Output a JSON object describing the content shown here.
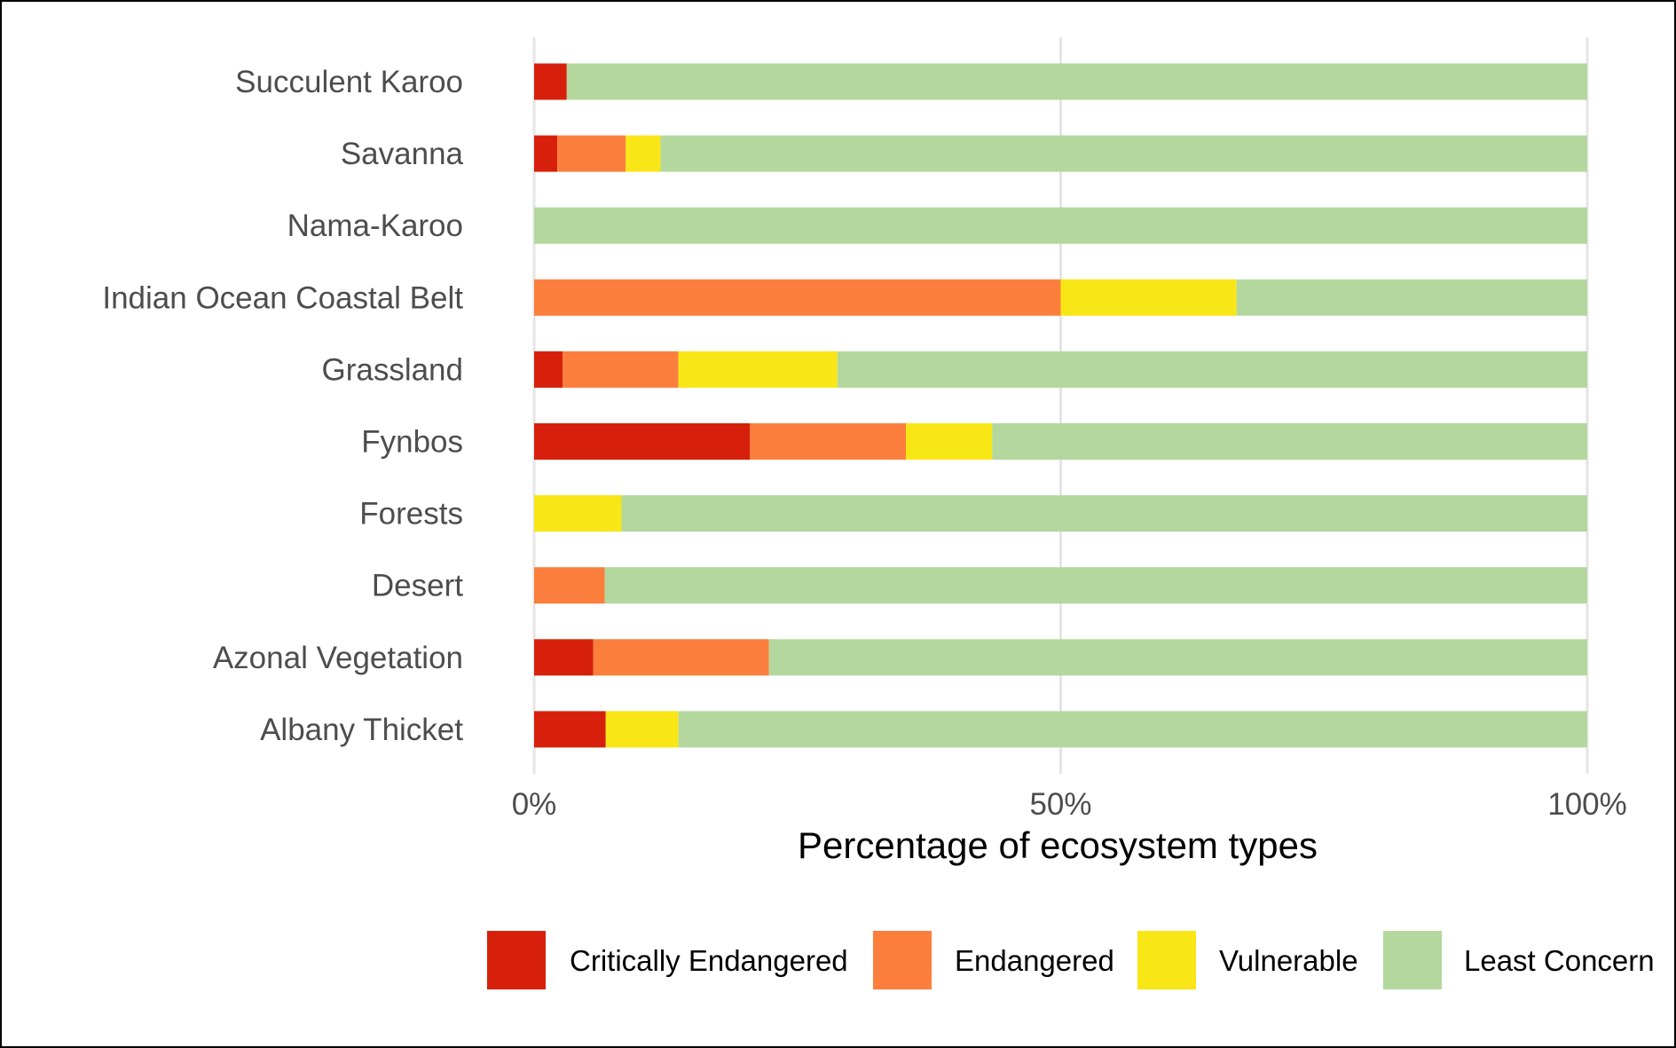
{
  "chart_data": {
    "type": "bar",
    "orientation": "horizontal",
    "stacked": true,
    "title": "",
    "xlabel": "Percentage of ecosystem types",
    "ylabel": "",
    "xlim": [
      0,
      100
    ],
    "x_ticks": [
      {
        "value": 0,
        "label": "0%"
      },
      {
        "value": 50,
        "label": "50%"
      },
      {
        "value": 100,
        "label": "100%"
      }
    ],
    "grid": "vertical major gridlines",
    "legend_position": "bottom",
    "categories": [
      "Succulent Karoo",
      "Savanna",
      "Nama-Karoo",
      "Indian Ocean Coastal Belt",
      "Grassland",
      "Fynbos",
      "Forests",
      "Desert",
      "Azonal Vegetation",
      "Albany Thicket"
    ],
    "series": [
      {
        "name": "Critically Endangered",
        "color": "#d7200b",
        "values": [
          3.1,
          2.2,
          0,
          0,
          2.7,
          20.5,
          0,
          0,
          5.6,
          6.8
        ]
      },
      {
        "name": "Endangered",
        "color": "#fc7e3d",
        "values": [
          0,
          6.5,
          0,
          50,
          11,
          14.8,
          0,
          6.7,
          16.7,
          0
        ]
      },
      {
        "name": "Vulnerable",
        "color": "#f8e616",
        "values": [
          0,
          3.3,
          0,
          16.7,
          15.1,
          8.2,
          8.3,
          0,
          0,
          6.9
        ]
      },
      {
        "name": "Least Concern",
        "color": "#b4d79e",
        "values": [
          96.9,
          88.0,
          100,
          33.3,
          71.2,
          56.5,
          91.7,
          93.3,
          77.7,
          86.3
        ]
      }
    ]
  }
}
